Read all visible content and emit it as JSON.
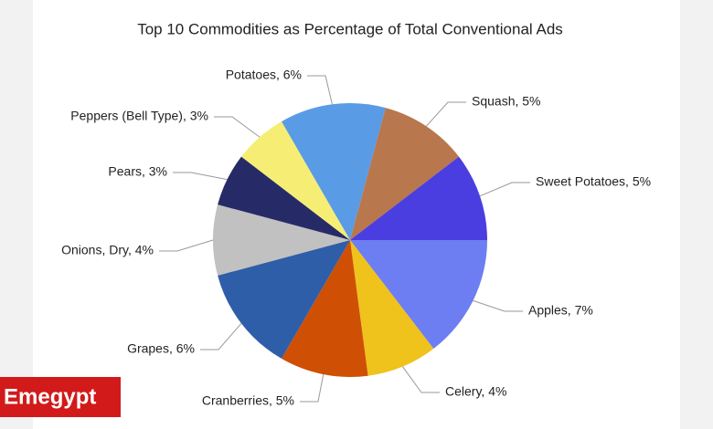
{
  "chart_data": {
    "type": "pie",
    "title": "Top 10 Commodities as Percentage of Total Conventional Ads",
    "categories": [
      "Apples, 7%",
      "Celery, 4%",
      "Cranberries, 5%",
      "Grapes, 6%",
      "Onions, Dry, 4%",
      "Pears, 3%",
      "Peppers (Bell Type), 3%",
      "Potatoes, 6%",
      "Squash, 5%",
      "Sweet Potatoes, 5%"
    ],
    "values": [
      7,
      4,
      5,
      6,
      4,
      3,
      3,
      6,
      5,
      5
    ],
    "colors": [
      "#6d7df2",
      "#efc21c",
      "#cf4f05",
      "#2f5ea8",
      "#c1c1c1",
      "#262b68",
      "#f6ee74",
      "#5a9be6",
      "#b8774d",
      "#4a3ee0"
    ]
  },
  "watermark": "Emegypt"
}
